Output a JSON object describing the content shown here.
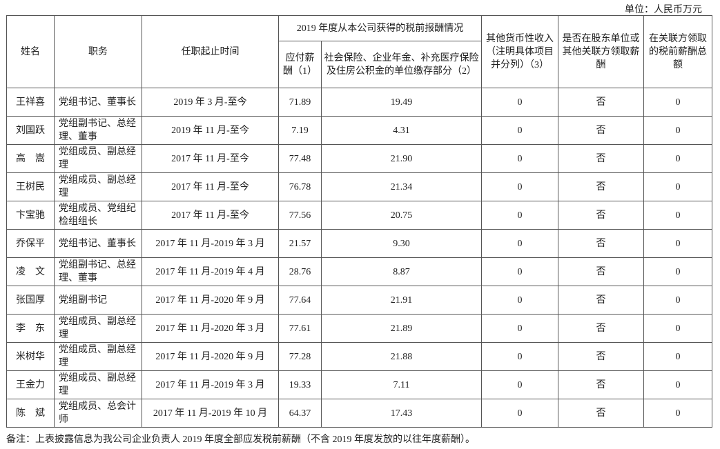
{
  "unit": "单位：人民币万元",
  "headers": {
    "name": "姓名",
    "role": "职务",
    "tenure": "任职起止时间",
    "group": "2019 年度从本公司获得的税前报酬情况",
    "salary": "应付薪酬（1）",
    "insurance": "社会保险、企业年金、补充医疗保险及住房公积金的单位缴存部分（2）",
    "other": "其他货币性收入（注明具体项目并分列）（3）",
    "shareholder": "是否在股东单位或其他关联方领取薪酬",
    "related": "在关联方领取的税前薪酬总额"
  },
  "rows": [
    {
      "name": "王祥喜",
      "role": "党组书记、董事长",
      "tenure": "2019 年 3 月-至今",
      "salary": "71.89",
      "insurance": "19.49",
      "other": "0",
      "shareholder": "否",
      "related": "0"
    },
    {
      "name": "刘国跃",
      "role": "党组副书记、总经理、董事",
      "tenure": "2019 年 11 月-至今",
      "salary": "7.19",
      "insurance": "4.31",
      "other": "0",
      "shareholder": "否",
      "related": "0"
    },
    {
      "name": "高　嵩",
      "role": "党组成员、副总经理",
      "tenure": "2017 年 11 月-至今",
      "salary": "77.48",
      "insurance": "21.90",
      "other": "0",
      "shareholder": "否",
      "related": "0"
    },
    {
      "name": "王树民",
      "role": "党组成员、副总经理",
      "tenure": "2017 年 11 月-至今",
      "salary": "76.78",
      "insurance": "21.34",
      "other": "0",
      "shareholder": "否",
      "related": "0"
    },
    {
      "name": "卞宝驰",
      "role": "党组成员、党组纪检组组长",
      "tenure": "2017 年 11 月-至今",
      "salary": "77.56",
      "insurance": "20.75",
      "other": "0",
      "shareholder": "否",
      "related": "0"
    },
    {
      "name": "乔保平",
      "role": "党组书记、董事长",
      "tenure": "2017 年 11 月-2019 年 3 月",
      "salary": "21.57",
      "insurance": "9.30",
      "other": "0",
      "shareholder": "否",
      "related": "0"
    },
    {
      "name": "凌　文",
      "role": "党组副书记、总经理、董事",
      "tenure": "2017 年 11 月-2019 年 4 月",
      "salary": "28.76",
      "insurance": "8.87",
      "other": "0",
      "shareholder": "否",
      "related": "0"
    },
    {
      "name": "张国厚",
      "role": "党组副书记",
      "tenure": "2017 年 11 月-2020 年 9 月",
      "salary": "77.64",
      "insurance": "21.91",
      "other": "0",
      "shareholder": "否",
      "related": "0"
    },
    {
      "name": "李　东",
      "role": "党组成员、副总经理",
      "tenure": "2017 年 11 月-2020 年 3 月",
      "salary": "77.61",
      "insurance": "21.89",
      "other": "0",
      "shareholder": "否",
      "related": "0"
    },
    {
      "name": "米树华",
      "role": "党组成员、副总经理",
      "tenure": "2017 年 11 月-2020 年 9 月",
      "salary": "77.28",
      "insurance": "21.88",
      "other": "0",
      "shareholder": "否",
      "related": "0"
    },
    {
      "name": "王金力",
      "role": "党组成员、副总经理",
      "tenure": "2017 年 11 月-2019 年 3 月",
      "salary": "19.33",
      "insurance": "7.11",
      "other": "0",
      "shareholder": "否",
      "related": "0"
    },
    {
      "name": "陈　斌",
      "role": "党组成员、总会计师",
      "tenure": "2017 年 11 月-2019 年 10 月",
      "salary": "64.37",
      "insurance": "17.43",
      "other": "0",
      "shareholder": "否",
      "related": "0"
    }
  ],
  "note": "备注：上表披露信息为我公司企业负责人 2019 年度全部应发税前薪酬（不含 2019 年度发放的以往年度薪酬）。"
}
